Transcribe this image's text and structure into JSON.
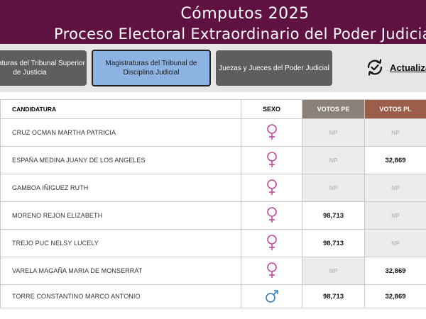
{
  "header": {
    "title": "Cómputos 2025",
    "subtitle": "Proceso Electoral Extraordinario del Poder Judicial"
  },
  "tabs": [
    {
      "label": "Magistraturas del Tribunal Superior de Justicia",
      "active": false
    },
    {
      "label": "Magistraturas del Tribunal de Disciplina Judicial",
      "active": true
    },
    {
      "label": "Juezas y Jueces del Poder Judicial",
      "active": false
    }
  ],
  "refresh": {
    "label": "Actualizar",
    "icon": "refresh-check-icon"
  },
  "table": {
    "headers": {
      "candidatura": "CANDIDATURA",
      "sexo": "SEXO",
      "votos_pe": "VOTOS PE",
      "votos_pl": "VOTOS PL"
    },
    "rows": [
      {
        "name": "CRUZ OCMAN MARTHA PATRICIA",
        "sexo": "F",
        "votos_pe": "NP",
        "votos_pl": "NP"
      },
      {
        "name": "ESPAÑA MEDINA JUANY DE LOS ANGELES",
        "sexo": "F",
        "votos_pe": "NP",
        "votos_pl": "32,869"
      },
      {
        "name": "GAMBOA IÑIGUEZ RUTH",
        "sexo": "F",
        "votos_pe": "NP",
        "votos_pl": "NP"
      },
      {
        "name": "MORENO REJON ELIZABETH",
        "sexo": "F",
        "votos_pe": "98,713",
        "votos_pl": "NP"
      },
      {
        "name": "TREJO PUC NELSY LUCELY",
        "sexo": "F",
        "votos_pe": "98,713",
        "votos_pl": "NP"
      },
      {
        "name": "VARELA MAGAÑA MARIA DE MONSERRAT",
        "sexo": "F",
        "votos_pe": "NP",
        "votos_pl": "32,869"
      },
      {
        "name": "TORRE CONSTANTINO MARCO ANTONIO",
        "sexo": "M",
        "votos_pe": "98,713",
        "votos_pl": "32,869"
      }
    ]
  },
  "colors": {
    "header_bg": "#5f1142",
    "female_icon": "#c24a9c",
    "male_icon": "#2f7fc1",
    "votos_pe_bg": "#8c8178",
    "votos_pl_bg": "#9a5e4a",
    "active_tab": "#8db3e2"
  }
}
